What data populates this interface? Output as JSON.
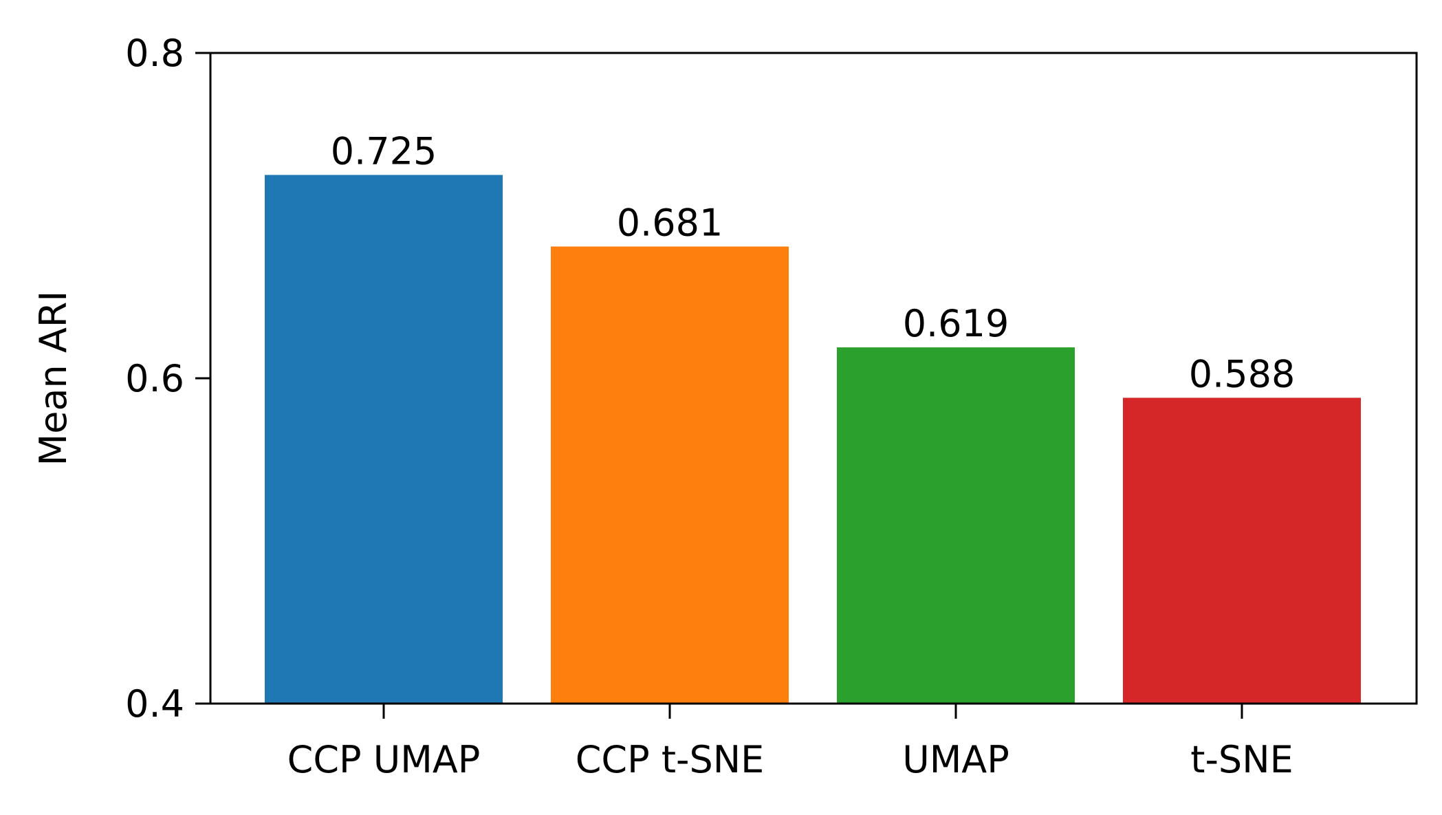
{
  "chart_data": {
    "type": "bar",
    "title": "",
    "xlabel": "",
    "ylabel": "Mean ARI",
    "categories": [
      "CCP UMAP",
      "CCP t-SNE",
      "UMAP",
      "t-SNE"
    ],
    "values": [
      0.725,
      0.681,
      0.619,
      0.588
    ],
    "value_labels": [
      "0.725",
      "0.681",
      "0.619",
      "0.588"
    ],
    "colors": [
      "#1f77b4",
      "#ff7f0e",
      "#2ca02c",
      "#d62728"
    ],
    "ylim": [
      0.4,
      0.8
    ],
    "yticks": [
      0.4,
      0.6,
      0.8
    ],
    "ytick_labels": [
      "0.4",
      "0.6",
      "0.8"
    ],
    "grid": false,
    "legend": "none"
  }
}
